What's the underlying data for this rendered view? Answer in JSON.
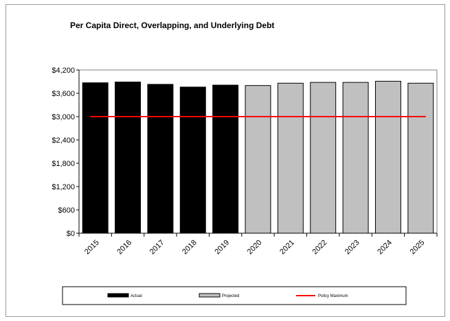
{
  "chart_data": {
    "type": "bar",
    "title": "Per Capita Direct, Overlapping,  and Underlying Debt",
    "categories": [
      "2015",
      "2016",
      "2017",
      "2018",
      "2019",
      "2020",
      "2021",
      "2022",
      "2023",
      "2024",
      "2025"
    ],
    "series": [
      {
        "name": "Actual",
        "color": "#000000",
        "values": [
          3870,
          3890,
          3830,
          3760,
          3810,
          null,
          null,
          null,
          null,
          null,
          null
        ]
      },
      {
        "name": "Projected",
        "color": "#c0c0c0",
        "values": [
          null,
          null,
          null,
          null,
          null,
          3800,
          3860,
          3880,
          3880,
          3910,
          3860
        ]
      }
    ],
    "reference_line": {
      "name": "Policy Maximum",
      "value": 3000,
      "color": "#ff0000"
    },
    "ylim": [
      0,
      4200
    ],
    "yticks": [
      0,
      600,
      1200,
      1800,
      2400,
      3000,
      3600,
      4200
    ],
    "ytick_labels": [
      "$0",
      "$600",
      "$1,200",
      "$1,800",
      "$2,400",
      "$3,000",
      "$3,600",
      "$4,200"
    ],
    "xlabel": "",
    "ylabel": "",
    "legend_position": "bottom",
    "grid": false
  }
}
